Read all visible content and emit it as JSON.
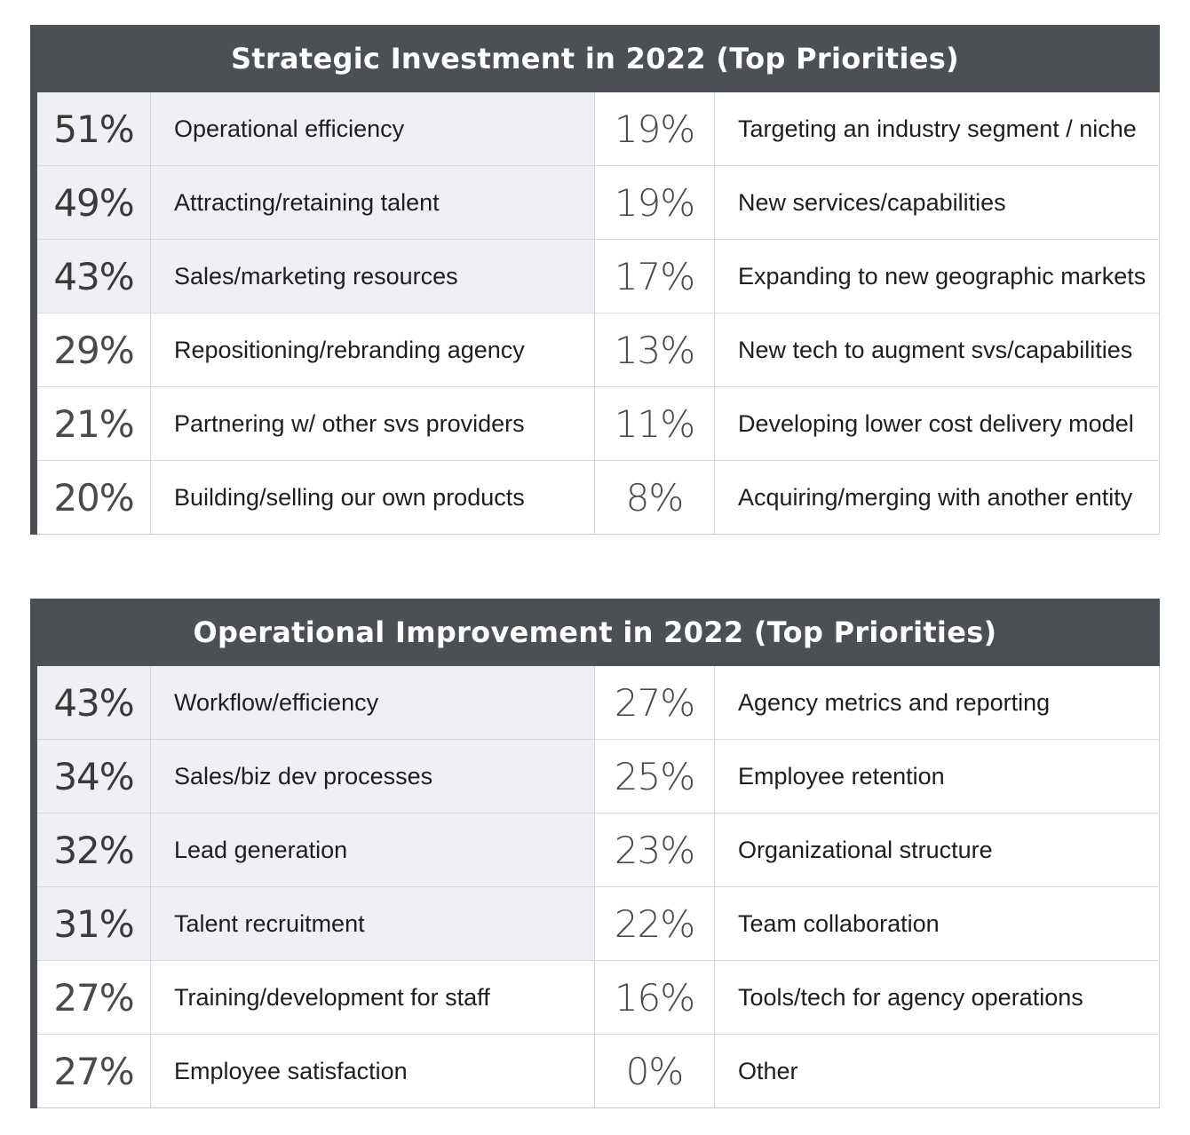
{
  "chart_data": [
    {
      "type": "table",
      "title": "Strategic Investment in 2022 (Top Priorities)",
      "columns": 2,
      "left": [
        {
          "value": "51%",
          "label": "Operational efficiency"
        },
        {
          "value": "49%",
          "label": "Attracting/retaining talent"
        },
        {
          "value": "43%",
          "label": "Sales/marketing resources"
        },
        {
          "value": "29%",
          "label": "Repositioning/rebranding agency"
        },
        {
          "value": "21%",
          "label": "Partnering w/ other svs providers"
        },
        {
          "value": "20%",
          "label": "Building/selling our own products"
        }
      ],
      "right": [
        {
          "value": "19%",
          "label": "Targeting an industry segment / niche"
        },
        {
          "value": "19%",
          "label": "New services/capabilities"
        },
        {
          "value": "17%",
          "label": "Expanding to new geographic markets"
        },
        {
          "value": "13%",
          "label": "New tech to augment svs/capabilities"
        },
        {
          "value": "11%",
          "label": "Developing lower cost delivery model"
        },
        {
          "value": "8%",
          "label": "Acquiring/merging with another entity"
        }
      ]
    },
    {
      "type": "table",
      "title": "Operational Improvement in 2022 (Top Priorities)",
      "columns": 2,
      "left": [
        {
          "value": "43%",
          "label": "Workflow/efficiency"
        },
        {
          "value": "34%",
          "label": "Sales/biz dev processes"
        },
        {
          "value": "32%",
          "label": "Lead generation"
        },
        {
          "value": "31%",
          "label": "Talent recruitment"
        },
        {
          "value": "27%",
          "label": "Training/development for staff"
        },
        {
          "value": "27%",
          "label": "Employee satisfaction"
        }
      ],
      "right": [
        {
          "value": "27%",
          "label": "Agency metrics and reporting"
        },
        {
          "value": "25%",
          "label": "Employee retention"
        },
        {
          "value": "23%",
          "label": "Organizational structure"
        },
        {
          "value": "22%",
          "label": "Team collaboration"
        },
        {
          "value": "16%",
          "label": "Tools/tech for agency operations"
        },
        {
          "value": "0%",
          "label": "Other"
        }
      ]
    }
  ],
  "colors": {
    "header_bg": "#4c4f54",
    "header_text": "#ffffff",
    "shaded_row_bg": "#eef0f4"
  },
  "shaded_rows": [
    [
      0,
      1,
      2
    ],
    [
      0,
      1,
      2,
      3
    ]
  ]
}
